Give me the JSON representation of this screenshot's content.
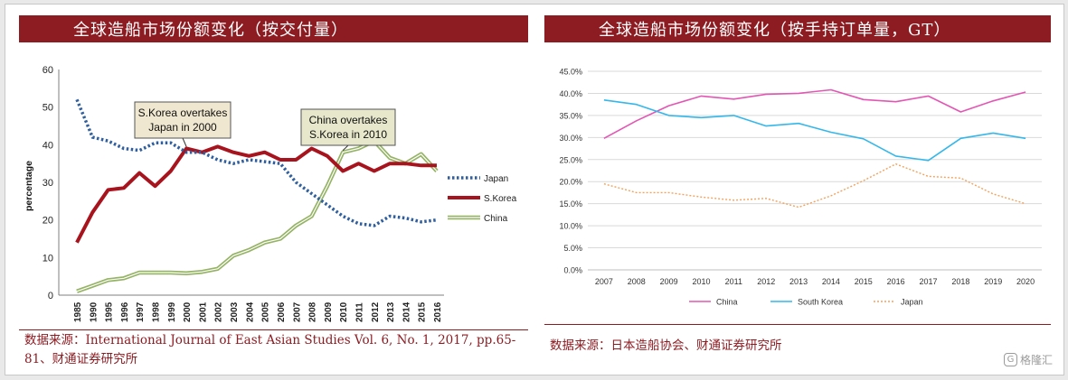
{
  "left_panel": {
    "title": "全球造船市场份额变化（按交付量）",
    "source": "数据来源：International Journal of East Asian Studies Vol. 6, No. 1, 2017, pp.65-81、财通证券研究所"
  },
  "right_panel": {
    "title": "全球造船市场份额变化（按手持订单量，GT）",
    "source": "数据来源：日本造船协会、财通证券研究所"
  },
  "watermark": "格隆汇",
  "colors": {
    "title_bg": "#8d1c22",
    "japan_left": "#2f5f9e",
    "korea_left": "#a8141e",
    "china_left": "#95b364",
    "china_right": "#e356b4",
    "korea_right": "#34b7ea",
    "japan_right": "#f2a25c"
  },
  "chart_data": [
    {
      "type": "line",
      "ylabel": "percentage",
      "ylim": [
        0,
        60
      ],
      "yticks": [
        "0",
        "10",
        "20",
        "30",
        "40",
        "50",
        "60"
      ],
      "categories": [
        "1985",
        "1990",
        "1995",
        "1996",
        "1997",
        "1998",
        "1999",
        "2000",
        "2001",
        "2002",
        "2003",
        "2004",
        "2005",
        "2006",
        "2007",
        "2008",
        "2009",
        "2010",
        "2011",
        "2012",
        "2013",
        "2014",
        "2015",
        "2016"
      ],
      "series": [
        {
          "name": "Japan",
          "style": "dotted",
          "values": [
            52,
            42,
            41,
            39,
            38.5,
            40.5,
            40.5,
            38,
            38,
            36,
            35,
            36,
            35.5,
            35,
            30,
            27,
            24,
            21,
            19,
            18.5,
            21,
            20.5,
            19.5,
            20
          ]
        },
        {
          "name": "S.Korea",
          "style": "solid-thick",
          "values": [
            14,
            22,
            28,
            28.5,
            32.5,
            29,
            33,
            39,
            38,
            39.5,
            38,
            37,
            38,
            36,
            36,
            39,
            37,
            33,
            35,
            33,
            35,
            35,
            34.5,
            34.5
          ]
        },
        {
          "name": "China",
          "style": "double",
          "values": [
            1,
            2.5,
            4,
            4.5,
            6,
            6,
            6,
            5.8,
            6.2,
            7,
            10.5,
            12,
            14,
            15,
            18.5,
            21,
            29,
            38,
            39,
            41,
            36.5,
            35,
            37.5,
            33
          ]
        }
      ],
      "annotations": [
        {
          "line1": "S.Korea overtakes",
          "line2": "Japan in 2000",
          "x": "2000",
          "y": 39
        },
        {
          "line1": "China overtakes",
          "line2": "S.Korea in 2010",
          "x": "2010",
          "y": 38
        }
      ],
      "legend": "right"
    },
    {
      "type": "line",
      "ylim": [
        0,
        45
      ],
      "yticks": [
        "0.0%",
        "5.0%",
        "10.0%",
        "15.0%",
        "20.0%",
        "25.0%",
        "30.0%",
        "35.0%",
        "40.0%",
        "45.0%"
      ],
      "categories": [
        "2007",
        "2008",
        "2009",
        "2010",
        "2011",
        "2012",
        "2013",
        "2014",
        "2015",
        "2016",
        "2017",
        "2018",
        "2019",
        "2020"
      ],
      "series": [
        {
          "name": "China",
          "style": "solid",
          "values": [
            29.8,
            33.8,
            37.2,
            39.4,
            38.7,
            39.8,
            40,
            40.8,
            38.6,
            38.1,
            39.4,
            35.8,
            38.3,
            40.3
          ]
        },
        {
          "name": "South Korea",
          "style": "solid",
          "values": [
            38.5,
            37.5,
            35,
            34.5,
            35,
            32.6,
            33.2,
            31.2,
            29.7,
            25.8,
            24.8,
            29.8,
            31,
            29.8
          ]
        },
        {
          "name": "Japan",
          "style": "dotted",
          "values": [
            19.5,
            17.5,
            17.5,
            16.5,
            15.8,
            16.2,
            14.2,
            16.8,
            20.2,
            24,
            21.2,
            20.8,
            17.2,
            15
          ]
        }
      ],
      "legend": "bottom"
    }
  ]
}
